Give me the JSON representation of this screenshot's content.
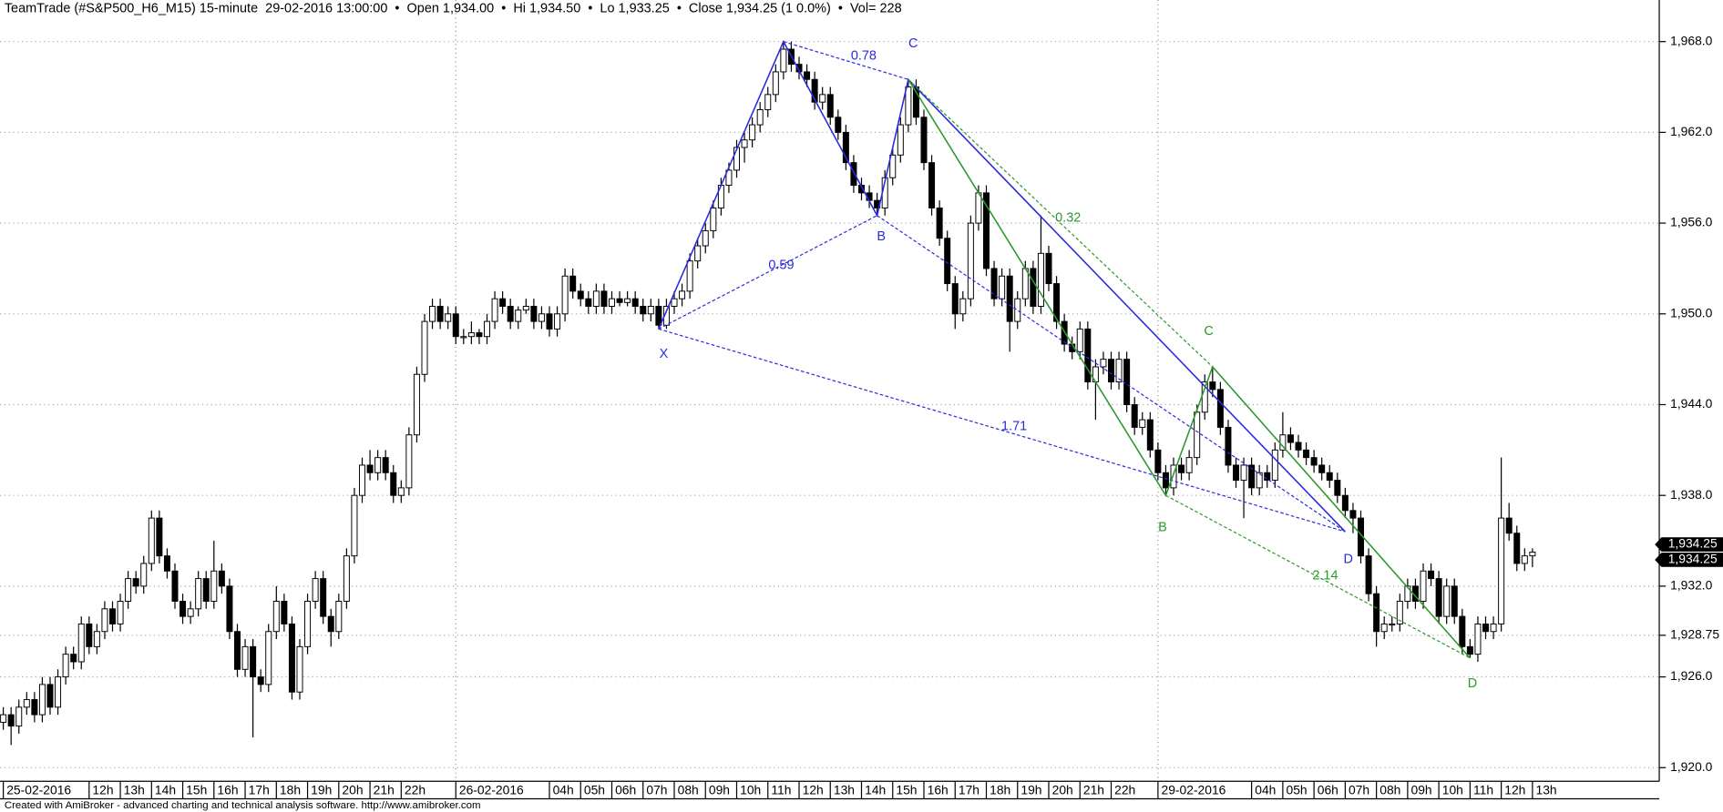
{
  "chart_data": {
    "type": "candlestick",
    "title": "TeamTrade (#S&P500_H6_M15) 15-minute",
    "datetime": "29-02-2016 13:00:00",
    "separator": "•",
    "open_text": "Open 1,934.00",
    "hi_text": "Hi 1,934.50",
    "lo_text": "Lo 1,933.25",
    "close_text": "Close 1,934.25 (1 0.0%)",
    "vol_text": "Vol= 228",
    "footer": "Created with AmiBroker - advanced charting and technical analysis software. http://www.amibroker.com",
    "up_color": "#ffffff",
    "down_color": "#000000",
    "grid": true,
    "ylim": [
      1919.1,
      1970.75
    ],
    "yticks": [
      {
        "value": 1968,
        "label": "1,968.0"
      },
      {
        "value": 1962,
        "label": "1,962.0"
      },
      {
        "value": 1956,
        "label": "1,956.0"
      },
      {
        "value": 1950,
        "label": "1,950.0"
      },
      {
        "value": 1944,
        "label": "1,944.0"
      },
      {
        "value": 1938,
        "label": "1,938.0"
      },
      {
        "value": 1932,
        "label": "1,932.0"
      },
      {
        "value": 1928.75,
        "label": "1,928.75"
      },
      {
        "value": 1926,
        "label": "1,926.0"
      },
      {
        "value": 1920,
        "label": "1,920.0"
      }
    ],
    "last_price": {
      "value": 1934.25,
      "label": "1,934.25"
    },
    "annotations": [
      "X",
      "B",
      "C",
      "D",
      "C",
      "B",
      "D",
      "0.78",
      "0.59",
      "1.71",
      "0.32",
      "2.14"
    ],
    "categories": [
      "25-02-2016",
      null,
      null,
      null,
      null,
      null,
      null,
      null,
      null,
      null,
      null,
      "12h",
      null,
      null,
      null,
      "13h",
      null,
      null,
      null,
      "14h",
      null,
      null,
      null,
      "15h",
      null,
      null,
      null,
      "16h",
      null,
      null,
      null,
      "17h",
      null,
      null,
      null,
      "18h",
      null,
      null,
      null,
      "19h",
      null,
      null,
      null,
      "20h",
      null,
      null,
      null,
      "21h",
      null,
      null,
      null,
      "22h",
      null,
      null,
      null,
      null,
      null,
      null,
      "26-02-2016",
      null,
      null,
      null,
      null,
      null,
      null,
      null,
      null,
      null,
      null,
      null,
      "04h",
      null,
      null,
      null,
      "05h",
      null,
      null,
      null,
      "06h",
      null,
      null,
      null,
      "07h",
      null,
      null,
      null,
      "08h",
      null,
      null,
      null,
      "09h",
      null,
      null,
      null,
      "10h",
      null,
      null,
      null,
      "11h",
      null,
      null,
      null,
      "12h",
      null,
      null,
      null,
      "13h",
      null,
      null,
      null,
      "14h",
      null,
      null,
      null,
      "15h",
      null,
      null,
      null,
      "16h",
      null,
      null,
      null,
      "17h",
      null,
      null,
      null,
      "18h",
      null,
      null,
      null,
      "19h",
      null,
      null,
      null,
      "20h",
      null,
      null,
      null,
      "21h",
      null,
      null,
      null,
      "22h",
      null,
      null,
      null,
      null,
      null,
      "29-02-2016",
      null,
      null,
      null,
      null,
      null,
      null,
      null,
      null,
      null,
      null,
      null,
      "04h",
      null,
      null,
      null,
      "05h",
      null,
      null,
      null,
      "06h",
      null,
      null,
      null,
      "07h",
      null,
      null,
      null,
      "08h",
      null,
      null,
      null,
      "09h",
      null,
      null,
      null,
      "10h",
      null,
      null,
      null,
      "11h",
      null,
      null,
      null,
      "12h",
      null,
      null,
      null,
      "13h"
    ],
    "candles": [
      [
        1923,
        1924,
        1922.5,
        1923.5
      ],
      [
        1923.5,
        1924,
        1921.5,
        1922.75
      ],
      [
        1922.75,
        1924.5,
        1922.25,
        1924
      ],
      [
        1924,
        1925,
        1923.5,
        1924.5
      ],
      [
        1924.5,
        1925,
        1923,
        1923.5
      ],
      [
        1923.5,
        1926,
        1923,
        1925.5
      ],
      [
        1925.5,
        1926,
        1923.5,
        1924
      ],
      [
        1924,
        1926.5,
        1923.5,
        1926
      ],
      [
        1926,
        1928,
        1925.5,
        1927.5
      ],
      [
        1927.5,
        1928,
        1926.5,
        1927
      ],
      [
        1927,
        1930,
        1926.5,
        1929.5
      ],
      [
        1929.5,
        1930,
        1927.5,
        1928
      ],
      [
        1928,
        1929.5,
        1927.5,
        1929
      ],
      [
        1929,
        1931,
        1928.5,
        1930.5
      ],
      [
        1930.5,
        1931,
        1929,
        1929.5
      ],
      [
        1929.5,
        1931.5,
        1929,
        1931
      ],
      [
        1931,
        1933,
        1930.5,
        1932.5
      ],
      [
        1932.5,
        1933,
        1931.5,
        1932
      ],
      [
        1932,
        1934,
        1931.5,
        1933.5
      ],
      [
        1933.5,
        1937,
        1933,
        1936.5
      ],
      [
        1936.5,
        1937,
        1933.5,
        1934
      ],
      [
        1934,
        1934.5,
        1932.5,
        1933
      ],
      [
        1933,
        1933.5,
        1930.5,
        1931
      ],
      [
        1931,
        1931.5,
        1929.5,
        1930
      ],
      [
        1930,
        1931,
        1929.5,
        1930.5
      ],
      [
        1930.5,
        1933,
        1930,
        1932.5
      ],
      [
        1932.5,
        1933,
        1930.5,
        1931
      ],
      [
        1931,
        1935,
        1930.5,
        1933
      ],
      [
        1933,
        1933.5,
        1931.5,
        1932
      ],
      [
        1932,
        1932.5,
        1928.5,
        1929
      ],
      [
        1929,
        1929.5,
        1926,
        1926.5
      ],
      [
        1926.5,
        1928.5,
        1926,
        1928
      ],
      [
        1928,
        1928.5,
        1922,
        1926
      ],
      [
        1926,
        1926.5,
        1925,
        1925.5
      ],
      [
        1925.5,
        1929.5,
        1925,
        1929
      ],
      [
        1929,
        1932,
        1928.5,
        1931
      ],
      [
        1931,
        1931.5,
        1929,
        1929.5
      ],
      [
        1929.5,
        1930,
        1924.5,
        1925
      ],
      [
        1925,
        1928.5,
        1924.5,
        1928
      ],
      [
        1928,
        1931.5,
        1927.5,
        1931
      ],
      [
        1931,
        1933,
        1930.5,
        1932.5
      ],
      [
        1932.5,
        1933,
        1929.5,
        1930
      ],
      [
        1930,
        1930.5,
        1928,
        1929
      ],
      [
        1929,
        1931.5,
        1928.5,
        1931
      ],
      [
        1931,
        1934.5,
        1930.5,
        1934
      ],
      [
        1934,
        1938.5,
        1933.5,
        1938
      ],
      [
        1938,
        1940.5,
        1937.5,
        1940
      ],
      [
        1940,
        1941,
        1939,
        1939.5
      ],
      [
        1939.5,
        1941,
        1939,
        1940.5
      ],
      [
        1940.5,
        1941,
        1939,
        1939.5
      ],
      [
        1939.5,
        1940,
        1937.5,
        1938
      ],
      [
        1938,
        1939,
        1937.5,
        1938.5
      ],
      [
        1938.5,
        1942.5,
        1938,
        1942
      ],
      [
        1942,
        1946.5,
        1941.5,
        1946
      ],
      [
        1946,
        1950,
        1945.5,
        1949.5
      ],
      [
        1949.5,
        1951,
        1949,
        1950.5
      ],
      [
        1950.5,
        1951,
        1949,
        1949.5
      ],
      [
        1949.5,
        1950.5,
        1949,
        1950
      ],
      [
        1950,
        1950.5,
        1948,
        1948.5
      ],
      [
        1948.5,
        1949,
        1948,
        1948.5
      ],
      [
        1948.5,
        1949.5,
        1948,
        1948.75
      ],
      [
        1948.75,
        1949,
        1948,
        1948.5
      ],
      [
        1948.5,
        1950,
        1948,
        1949.5
      ],
      [
        1949.5,
        1951.5,
        1949,
        1951
      ],
      [
        1951,
        1951.5,
        1950,
        1950.5
      ],
      [
        1950.5,
        1951,
        1949,
        1949.5
      ],
      [
        1949.5,
        1950.5,
        1949,
        1950.25
      ],
      [
        1950.25,
        1951,
        1950,
        1950.5
      ],
      [
        1950.5,
        1951,
        1949,
        1949.5
      ],
      [
        1949.5,
        1950.5,
        1949,
        1950
      ],
      [
        1950,
        1950.5,
        1948.5,
        1949
      ],
      [
        1949,
        1950.5,
        1948.5,
        1950
      ],
      [
        1950,
        1953,
        1949.5,
        1952.5
      ],
      [
        1952.5,
        1953,
        1951,
        1951.5
      ],
      [
        1951.5,
        1952,
        1950.5,
        1951
      ],
      [
        1951,
        1951.5,
        1950,
        1950.5
      ],
      [
        1950.5,
        1952,
        1950,
        1951.5
      ],
      [
        1951.5,
        1952,
        1950,
        1950.5
      ],
      [
        1950.5,
        1951.5,
        1950,
        1951
      ],
      [
        1951,
        1951.5,
        1950.5,
        1950.75
      ],
      [
        1950.75,
        1951.5,
        1950.5,
        1951
      ],
      [
        1951,
        1951.5,
        1950,
        1950.5
      ],
      [
        1950.5,
        1951,
        1949.5,
        1950
      ],
      [
        1950,
        1951,
        1949.5,
        1950.5
      ],
      [
        1950.5,
        1951,
        1949,
        1949.25
      ],
      [
        1949.25,
        1951,
        1949,
        1950.5
      ],
      [
        1950.5,
        1951.5,
        1950,
        1951
      ],
      [
        1951,
        1952,
        1950.5,
        1951.5
      ],
      [
        1951.5,
        1954,
        1951,
        1953.5
      ],
      [
        1953.5,
        1955,
        1953,
        1954.5
      ],
      [
        1954.5,
        1956,
        1954,
        1955.5
      ],
      [
        1955.5,
        1957.5,
        1955,
        1957
      ],
      [
        1957,
        1959,
        1956.5,
        1958.5
      ],
      [
        1958.5,
        1960,
        1958,
        1959.5
      ],
      [
        1959.5,
        1961.5,
        1959,
        1961
      ],
      [
        1961,
        1962,
        1960,
        1961.5
      ],
      [
        1961.5,
        1963,
        1961,
        1962.5
      ],
      [
        1962.5,
        1964,
        1962,
        1963.5
      ],
      [
        1963.5,
        1965,
        1963,
        1964.5
      ],
      [
        1964.5,
        1966.5,
        1964,
        1966
      ],
      [
        1966,
        1968,
        1965.5,
        1967.5
      ],
      [
        1967.5,
        1968,
        1966,
        1966.5
      ],
      [
        1966.5,
        1967,
        1965.5,
        1966
      ],
      [
        1966,
        1966.5,
        1965,
        1965.5
      ],
      [
        1965.5,
        1966,
        1963.5,
        1964
      ],
      [
        1964,
        1965,
        1963.5,
        1964.5
      ],
      [
        1964.5,
        1965,
        1962.5,
        1963
      ],
      [
        1963,
        1963.5,
        1961.5,
        1962
      ],
      [
        1962,
        1962.5,
        1959.5,
        1960
      ],
      [
        1960,
        1960.5,
        1958,
        1958.5
      ],
      [
        1958.5,
        1959,
        1957.5,
        1958
      ],
      [
        1958,
        1958.5,
        1957,
        1957.5
      ],
      [
        1957.5,
        1958,
        1956.5,
        1957
      ],
      [
        1957,
        1959.5,
        1956.5,
        1959
      ],
      [
        1959,
        1961,
        1958.5,
        1960.5
      ],
      [
        1960.5,
        1963,
        1960,
        1962.5
      ],
      [
        1962.5,
        1965.5,
        1962,
        1965
      ],
      [
        1965,
        1965.5,
        1962.5,
        1963
      ],
      [
        1963,
        1963.5,
        1959.5,
        1960
      ],
      [
        1960,
        1960.5,
        1956.5,
        1957
      ],
      [
        1957,
        1957.5,
        1954.5,
        1955
      ],
      [
        1955,
        1955.5,
        1951.5,
        1952
      ],
      [
        1952,
        1952.5,
        1949,
        1950
      ],
      [
        1950,
        1951.5,
        1949.5,
        1951
      ],
      [
        1951,
        1956.5,
        1950.5,
        1956
      ],
      [
        1956,
        1958.5,
        1955.5,
        1958
      ],
      [
        1958,
        1958.5,
        1952.5,
        1953
      ],
      [
        1953,
        1953.5,
        1950.5,
        1951
      ],
      [
        1951,
        1953,
        1950.5,
        1952.5
      ],
      [
        1952.5,
        1953,
        1947.5,
        1949.5
      ],
      [
        1949.5,
        1951.5,
        1949,
        1951
      ],
      [
        1951,
        1953.5,
        1950.5,
        1953
      ],
      [
        1953,
        1953.5,
        1950,
        1950.5
      ],
      [
        1950.5,
        1956.5,
        1950,
        1954
      ],
      [
        1954,
        1954.5,
        1951.5,
        1952
      ],
      [
        1952,
        1952.5,
        1949,
        1949.5
      ],
      [
        1949.5,
        1950,
        1947.5,
        1948
      ],
      [
        1948,
        1948.5,
        1947,
        1947.5
      ],
      [
        1947.5,
        1949.5,
        1947,
        1949
      ],
      [
        1949,
        1949.5,
        1945,
        1945.5
      ],
      [
        1945.5,
        1947,
        1943,
        1946.5
      ],
      [
        1946.5,
        1947.5,
        1946,
        1947
      ],
      [
        1947,
        1947.5,
        1945,
        1945.5
      ],
      [
        1945.5,
        1947.5,
        1945,
        1947
      ],
      [
        1947,
        1947.5,
        1943.5,
        1944
      ],
      [
        1944,
        1944.5,
        1942,
        1942.5
      ],
      [
        1942.5,
        1943.5,
        1942,
        1943
      ],
      [
        1943,
        1943.5,
        1940.5,
        1941
      ],
      [
        1941,
        1941.5,
        1939,
        1939.5
      ],
      [
        1939.5,
        1940,
        1938,
        1938.5
      ],
      [
        1938.5,
        1940.5,
        1938,
        1940
      ],
      [
        1940,
        1940.5,
        1939,
        1939.5
      ],
      [
        1939.5,
        1941,
        1939,
        1940.5
      ],
      [
        1940.5,
        1944,
        1940,
        1943.5
      ],
      [
        1943.5,
        1946,
        1943,
        1945.5
      ],
      [
        1945.5,
        1946.5,
        1944.5,
        1945
      ],
      [
        1945,
        1945.5,
        1942,
        1942.5
      ],
      [
        1942.5,
        1943,
        1939.5,
        1940
      ],
      [
        1940,
        1940.5,
        1938.5,
        1939
      ],
      [
        1939,
        1940.5,
        1936.5,
        1940
      ],
      [
        1940,
        1940.5,
        1938,
        1938.5
      ],
      [
        1938.5,
        1940,
        1938,
        1939.5
      ],
      [
        1939.5,
        1940,
        1938.5,
        1939
      ],
      [
        1939,
        1941.5,
        1938.5,
        1941
      ],
      [
        1941,
        1943.5,
        1940.5,
        1942
      ],
      [
        1942,
        1942.5,
        1941,
        1941.5
      ],
      [
        1941.5,
        1942,
        1940.5,
        1941
      ],
      [
        1941,
        1941.5,
        1940,
        1940.5
      ],
      [
        1940.5,
        1941,
        1939.5,
        1940
      ],
      [
        1940,
        1940.5,
        1939,
        1939.5
      ],
      [
        1939.5,
        1940,
        1938.5,
        1939
      ],
      [
        1939,
        1939.5,
        1937.5,
        1938
      ],
      [
        1938,
        1938.5,
        1936.5,
        1937
      ],
      [
        1937,
        1937.5,
        1935.5,
        1936.5
      ],
      [
        1936.5,
        1937,
        1933.5,
        1934
      ],
      [
        1934,
        1934.5,
        1931,
        1931.5
      ],
      [
        1931.5,
        1932,
        1928,
        1929
      ],
      [
        1929,
        1930,
        1928.5,
        1929.5
      ],
      [
        1929.5,
        1930,
        1929,
        1929.5
      ],
      [
        1929.5,
        1931.5,
        1929,
        1931
      ],
      [
        1931,
        1932.5,
        1930.5,
        1932
      ],
      [
        1932,
        1932.5,
        1930.5,
        1931
      ],
      [
        1931,
        1933.5,
        1930.5,
        1933
      ],
      [
        1933,
        1933.5,
        1932,
        1932.5
      ],
      [
        1932.5,
        1933,
        1929.5,
        1930
      ],
      [
        1930,
        1932.5,
        1929.5,
        1932
      ],
      [
        1932,
        1932.5,
        1929.5,
        1930
      ],
      [
        1930,
        1930.5,
        1927.5,
        1928
      ],
      [
        1928,
        1928.5,
        1927.25,
        1927.5
      ],
      [
        1927.5,
        1930,
        1927,
        1929.5
      ],
      [
        1929.5,
        1930,
        1928.5,
        1929
      ],
      [
        1929,
        1930,
        1928.5,
        1929.5
      ],
      [
        1929.5,
        1940.5,
        1929,
        1936.5
      ],
      [
        1936.5,
        1937.5,
        1935,
        1935.5
      ],
      [
        1935.5,
        1936,
        1933,
        1933.5
      ],
      [
        1933.5,
        1934.5,
        1933,
        1934
      ],
      [
        1934,
        1934.5,
        1933.25,
        1934.25
      ]
    ]
  }
}
